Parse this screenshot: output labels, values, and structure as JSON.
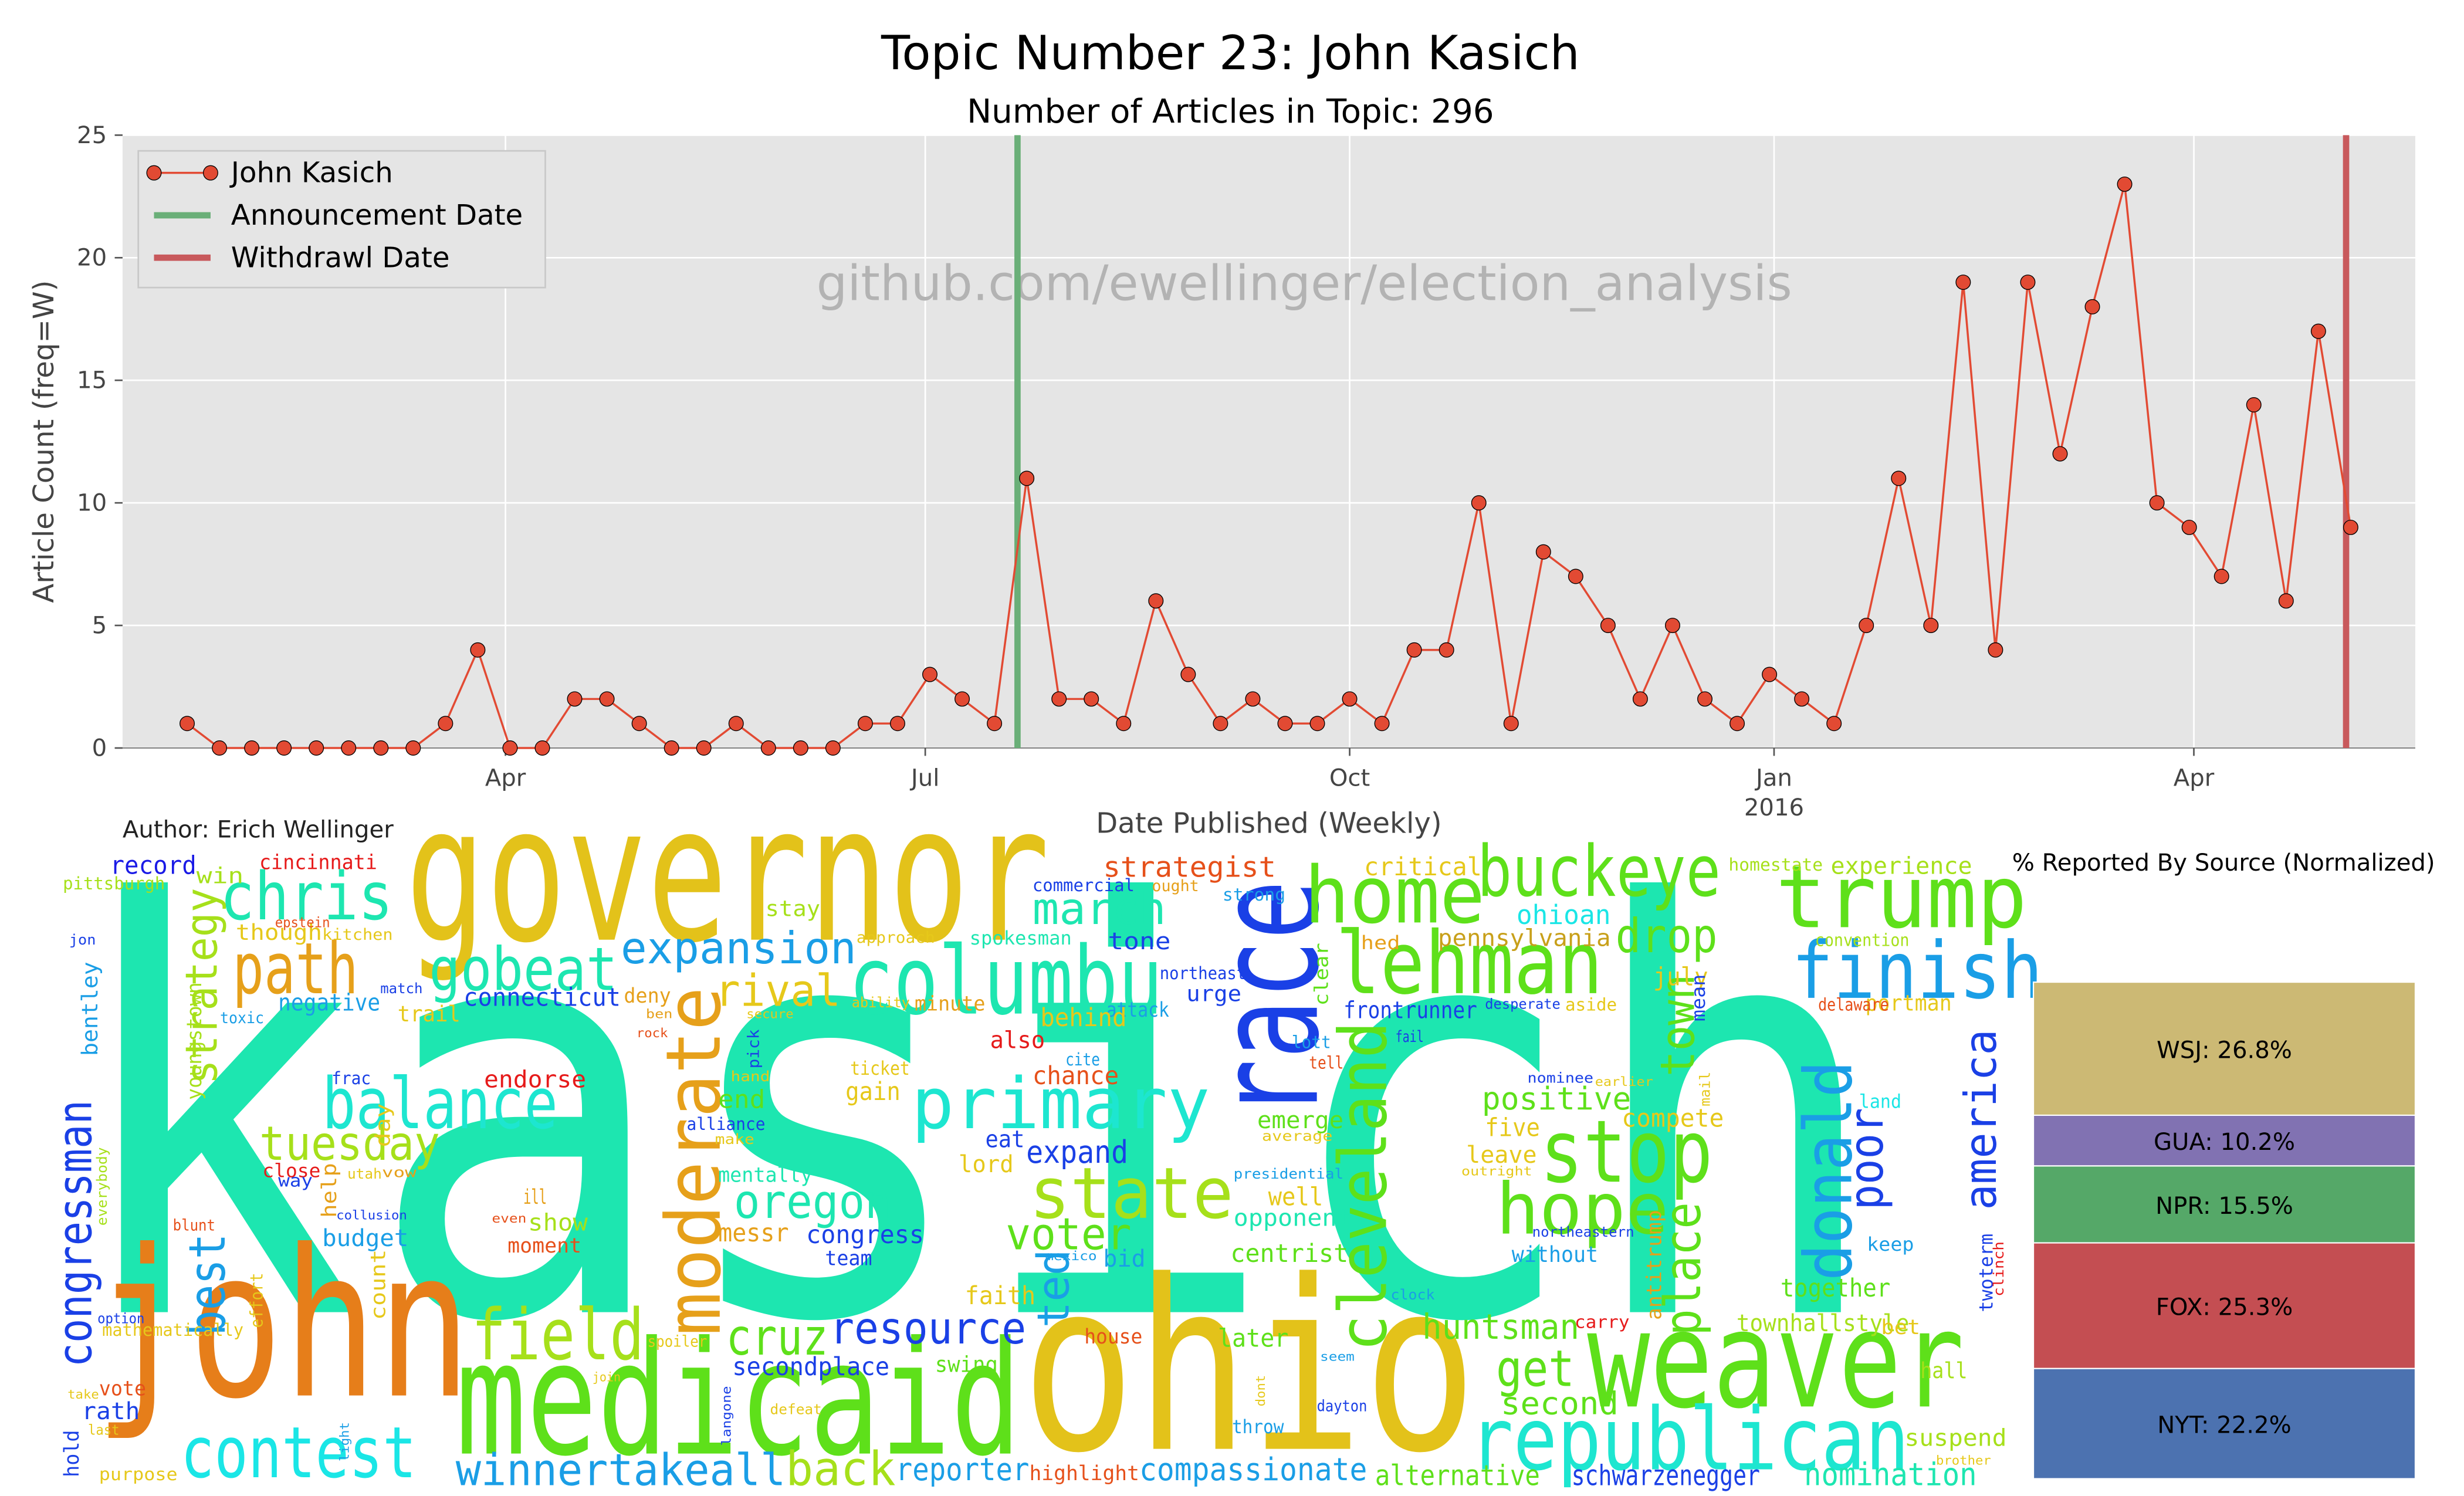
{
  "chart_data": [
    {
      "type": "line",
      "title": "Topic Number 23: John Kasich",
      "subtitle": "Number of Articles in Topic: 296",
      "xlabel": "Date Published (Weekly)",
      "ylabel": "Article Count (freq=W)",
      "annotation": "github.com/ewellinger/election_analysis",
      "x": [
        "2015-01-22",
        "2015-01-29",
        "2015-02-05",
        "2015-02-12",
        "2015-02-19",
        "2015-02-26",
        "2015-03-05",
        "2015-03-12",
        "2015-03-19",
        "2015-03-26",
        "2015-04-02",
        "2015-04-09",
        "2015-04-16",
        "2015-04-23",
        "2015-04-30",
        "2015-05-07",
        "2015-05-14",
        "2015-05-21",
        "2015-05-28",
        "2015-06-04",
        "2015-06-11",
        "2015-06-18",
        "2015-06-25",
        "2015-07-02",
        "2015-07-09",
        "2015-07-16",
        "2015-07-23",
        "2015-07-30",
        "2015-08-06",
        "2015-08-13",
        "2015-08-20",
        "2015-08-27",
        "2015-09-03",
        "2015-09-10",
        "2015-09-17",
        "2015-09-24",
        "2015-10-01",
        "2015-10-08",
        "2015-10-15",
        "2015-10-22",
        "2015-10-29",
        "2015-11-05",
        "2015-11-12",
        "2015-11-19",
        "2015-11-26",
        "2015-12-03",
        "2015-12-10",
        "2015-12-17",
        "2015-12-24",
        "2015-12-31",
        "2016-01-07",
        "2016-01-14",
        "2016-01-21",
        "2016-01-28",
        "2016-02-04",
        "2016-02-11",
        "2016-02-18",
        "2016-02-25",
        "2016-03-03",
        "2016-03-10",
        "2016-03-17",
        "2016-03-24",
        "2016-03-31",
        "2016-04-07",
        "2016-04-14",
        "2016-04-21",
        "2016-04-28",
        "2016-05-05"
      ],
      "series": [
        {
          "name": "John Kasich",
          "color": "#e24a33",
          "values": [
            1,
            0,
            0,
            0,
            0,
            0,
            0,
            0,
            1,
            4,
            0,
            0,
            2,
            2,
            1,
            0,
            0,
            1,
            0,
            0,
            0,
            1,
            1,
            3,
            2,
            1,
            11,
            2,
            2,
            1,
            6,
            3,
            1,
            2,
            1,
            1,
            2,
            1,
            4,
            4,
            10,
            1,
            8,
            7,
            5,
            2,
            5,
            2,
            1,
            3,
            2,
            1,
            5,
            11,
            5,
            19,
            4,
            19,
            12,
            18,
            23,
            10,
            9,
            7,
            14,
            6,
            17,
            9
          ]
        }
      ],
      "vlines": [
        {
          "name": "Announcement Date",
          "color": "#6aaf78",
          "x": "2015-07-21"
        },
        {
          "name": "Withdrawl Date",
          "color": "#c8595c",
          "x": "2016-05-04"
        }
      ],
      "xlim": [
        "2015-01-08",
        "2016-05-19"
      ],
      "xticks": [
        {
          "value": "2015-04-01",
          "label": "Apr"
        },
        {
          "value": "2015-07-01",
          "label": "Jul"
        },
        {
          "value": "2015-10-01",
          "label": "Oct"
        },
        {
          "value": "2016-01-01",
          "label": "Jan",
          "year": "2016"
        },
        {
          "value": "2016-04-01",
          "label": "Apr"
        }
      ],
      "ylim": [
        0,
        25
      ],
      "yticks": [
        0,
        5,
        10,
        15,
        20,
        25
      ],
      "grid": true,
      "legend": "upper left"
    },
    {
      "type": "stacked_bar",
      "title": "% Reported By Source (Normalized)",
      "values": [
        22.2,
        25.3,
        15.5,
        10.2,
        26.8
      ],
      "value_labels": [
        "NYT: 22.2%",
        "FOX: 25.3%",
        "NPR: 15.5%",
        "GUA: 10.2%",
        "WSJ: 26.8%"
      ],
      "colors": [
        "#4c72b0",
        "#c44e52",
        "#55a868",
        "#8172b2",
        "#ccb974"
      ],
      "ylim": [
        0,
        100
      ]
    }
  ],
  "author": "Author: Erich Wellinger",
  "word_cloud": {
    "words": [
      "kasich",
      "governor",
      "john",
      "ohio",
      "medicaid",
      "weaver",
      "republican",
      "race",
      "columbu",
      "trump",
      "finish",
      "buckeye",
      "home",
      "lehman",
      "chris",
      "path",
      "gobeat",
      "expansion",
      "balance",
      "primary",
      "tuesday",
      "march",
      "stop",
      "hope",
      "state",
      "oregon",
      "voter",
      "field",
      "cruz",
      "resource",
      "contest",
      "winnertakeall",
      "back",
      "reporter",
      "compassionate",
      "alternative",
      "schwarzenegger",
      "nomination",
      "cleveland",
      "moderate",
      "donald",
      "america",
      "town",
      "place",
      "poor",
      "congressman",
      "strategy",
      "best",
      "ted",
      "rival",
      "get",
      "huntsman",
      "second",
      "positive",
      "drop",
      "ohioan",
      "pennsylvania",
      "critical",
      "strategist",
      "experience",
      "homestate",
      "record",
      "win",
      "cincinnati",
      "pittsburgh",
      "commercial",
      "ought",
      "strong",
      "stay",
      "though",
      "kitchen",
      "spokesman",
      "tone",
      "connecticut",
      "negative",
      "trail",
      "deny",
      "minute",
      "urge",
      "northeast",
      "attack",
      "behind",
      "also",
      "chance",
      "frontrunner",
      "july",
      "portman",
      "delaware",
      "convention",
      "endorse",
      "gain",
      "eat",
      "expand",
      "lord",
      "emerge",
      "compete",
      "five",
      "leave",
      "land",
      "mentally",
      "alliance",
      "end",
      "messr",
      "congress",
      "team",
      "bid",
      "centrist",
      "opponent",
      "well",
      "show",
      "moment",
      "ill",
      "budget",
      "close",
      "faith",
      "secondplace",
      "swing",
      "house",
      "later",
      "throw",
      "dayton",
      "highlight",
      "together",
      "townhallstyle",
      "keep",
      "without",
      "hall",
      "suspend",
      "bet",
      "carry",
      "mathematically",
      "vote",
      "rath",
      "purpose",
      "bentley",
      "youngstown",
      "twoterm",
      "antitrump",
      "mean",
      "clear",
      "frac",
      "day",
      "help",
      "count",
      "effort",
      "everybody",
      "blunt",
      "toxic",
      "hold",
      "spoiler",
      "approach",
      "ability",
      "ticket",
      "cite",
      "lott",
      "tell",
      "fail",
      "hed",
      "desperate",
      "aside",
      "nominee",
      "earlier",
      "outright",
      "presidential",
      "average",
      "northeastern",
      "clock",
      "seem",
      "dont",
      "brother",
      "clinch",
      "mail",
      "pick",
      "make",
      "hand",
      "way",
      "utah",
      "vow",
      "collusion",
      "even",
      "mexico",
      "langone",
      "defeat",
      "secure",
      "rock",
      "ben",
      "match",
      "jon",
      "epstein",
      "option",
      "take",
      "last",
      "join",
      "light"
    ]
  }
}
